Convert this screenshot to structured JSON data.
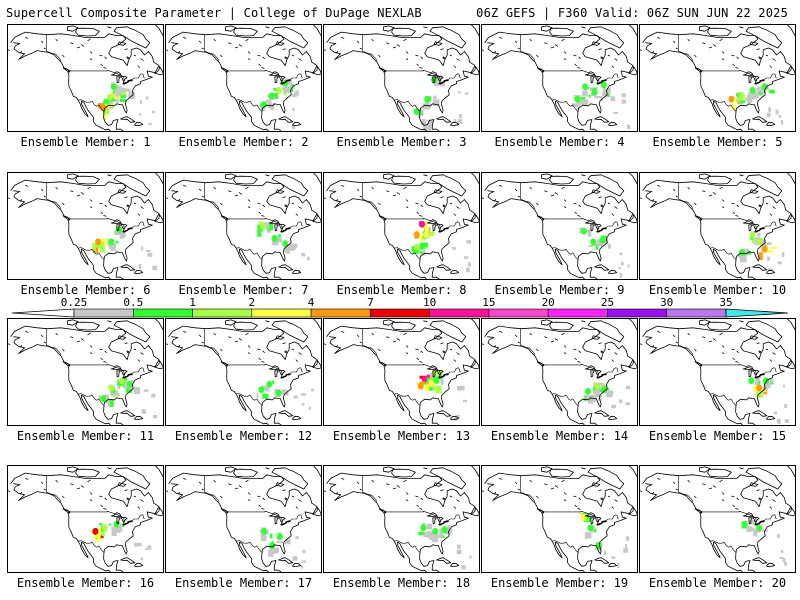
{
  "header": {
    "left_title": "Supercell Composite Parameter | College of DuPage NEXLAB",
    "right_title": "06Z GEFS | F360 Valid: 06Z SUN JUN 22 2025"
  },
  "colorbar": {
    "ticks": [
      "0.25",
      "0.5",
      "1",
      "2",
      "4",
      "7",
      "10",
      "15",
      "20",
      "25",
      "30",
      "35"
    ],
    "colors": [
      "#c8c8c8",
      "#33ff33",
      "#aaff44",
      "#ffff44",
      "#ff9911",
      "#ee0000",
      "#ff1199",
      "#ff44cc",
      "#ff22ff",
      "#9911ee",
      "#bb77ee",
      "#44e6e6"
    ]
  },
  "panels": [
    {
      "caption": "Ensemble Member: 1",
      "blobs": [
        {
          "lon": -96,
          "lat": 31,
          "v": 0.5
        },
        {
          "lon": -93,
          "lat": 34,
          "v": 1
        },
        {
          "lon": -88,
          "lat": 35,
          "v": 2
        },
        {
          "lon": -83,
          "lat": 37,
          "v": 1
        },
        {
          "lon": -98,
          "lat": 28,
          "v": 4
        },
        {
          "lon": -90,
          "lat": 40,
          "v": 0.5
        }
      ]
    },
    {
      "caption": "Ensemble Member: 2",
      "blobs": [
        {
          "lon": -90,
          "lat": 35,
          "v": 0.5
        },
        {
          "lon": -85,
          "lat": 38,
          "v": 1
        },
        {
          "lon": -80,
          "lat": 42,
          "v": 0.5
        },
        {
          "lon": -96,
          "lat": 30,
          "v": 0.5
        }
      ]
    },
    {
      "caption": "Ensemble Member: 3",
      "blobs": [
        {
          "lon": -100,
          "lat": 26,
          "v": 0.5
        },
        {
          "lon": -92,
          "lat": 33,
          "v": 0.5
        },
        {
          "lon": -87,
          "lat": 44,
          "v": 0.5
        },
        {
          "lon": -95,
          "lat": 20,
          "v": 0.25
        }
      ]
    },
    {
      "caption": "Ensemble Member: 4",
      "blobs": [
        {
          "lon": -92,
          "lat": 40,
          "v": 0.5
        },
        {
          "lon": -85,
          "lat": 37,
          "v": 0.5
        },
        {
          "lon": -78,
          "lat": 41,
          "v": 0.5
        },
        {
          "lon": -98,
          "lat": 33,
          "v": 0.5
        }
      ]
    },
    {
      "caption": "Ensemble Member: 5",
      "blobs": [
        {
          "lon": -101,
          "lat": 33,
          "v": 4
        },
        {
          "lon": -93,
          "lat": 35,
          "v": 1
        },
        {
          "lon": -85,
          "lat": 38,
          "v": 0.5
        },
        {
          "lon": -76,
          "lat": 40,
          "v": 0.5
        }
      ]
    },
    {
      "caption": "Ensemble Member: 6",
      "blobs": [
        {
          "lon": -102,
          "lat": 36,
          "v": 4
        },
        {
          "lon": -92,
          "lat": 36,
          "v": 0.5
        },
        {
          "lon": -86,
          "lat": 43,
          "v": 0.5
        }
      ]
    },
    {
      "caption": "Ensemble Member: 7",
      "blobs": [
        {
          "lon": -97,
          "lat": 45,
          "v": 1
        },
        {
          "lon": -88,
          "lat": 38,
          "v": 0.5
        },
        {
          "lon": -80,
          "lat": 35,
          "v": 0.5
        }
      ]
    },
    {
      "caption": "Ensemble Member: 8",
      "blobs": [
        {
          "lon": -96,
          "lat": 46,
          "v": 10
        },
        {
          "lon": -100,
          "lat": 40,
          "v": 4
        },
        {
          "lon": -93,
          "lat": 40,
          "v": 2
        },
        {
          "lon": -100,
          "lat": 33,
          "v": 1
        }
      ]
    },
    {
      "caption": "Ensemble Member: 9",
      "blobs": [
        {
          "lon": -93,
          "lat": 42,
          "v": 0.5
        },
        {
          "lon": -86,
          "lat": 36,
          "v": 0.5
        },
        {
          "lon": -79,
          "lat": 37,
          "v": 0.5
        }
      ]
    },
    {
      "caption": "Ensemble Member: 10",
      "blobs": [
        {
          "lon": -85,
          "lat": 40,
          "v": 1
        },
        {
          "lon": -80,
          "lat": 36,
          "v": 1
        },
        {
          "lon": -76,
          "lat": 32,
          "v": 4
        },
        {
          "lon": -93,
          "lat": 30,
          "v": 0.5
        }
      ]
    },
    {
      "caption": "Ensemble Member: 11",
      "blobs": [
        {
          "lon": -92,
          "lat": 36,
          "v": 1
        },
        {
          "lon": -84,
          "lat": 40,
          "v": 1
        },
        {
          "lon": -78,
          "lat": 38,
          "v": 0.5
        },
        {
          "lon": -98,
          "lat": 30,
          "v": 0.5
        }
      ]
    },
    {
      "caption": "Ensemble Member: 12",
      "blobs": [
        {
          "lon": -98,
          "lat": 35,
          "v": 0.5
        },
        {
          "lon": -92,
          "lat": 38,
          "v": 0.5
        },
        {
          "lon": -85,
          "lat": 33,
          "v": 0.5
        }
      ]
    },
    {
      "caption": "Ensemble Member: 13",
      "blobs": [
        {
          "lon": -94,
          "lat": 41,
          "v": 10
        },
        {
          "lon": -97,
          "lat": 37,
          "v": 4
        },
        {
          "lon": -89,
          "lat": 39,
          "v": 2
        },
        {
          "lon": -86,
          "lat": 44,
          "v": 1
        }
      ]
    },
    {
      "caption": "Ensemble Member: 14",
      "blobs": [
        {
          "lon": -83,
          "lat": 37,
          "v": 1
        },
        {
          "lon": -90,
          "lat": 34,
          "v": 0.5
        },
        {
          "lon": -78,
          "lat": 35,
          "v": 0.5
        }
      ]
    },
    {
      "caption": "Ensemble Member: 15",
      "blobs": [
        {
          "lon": -80,
          "lat": 36,
          "v": 4
        },
        {
          "lon": -86,
          "lat": 40,
          "v": 0.5
        },
        {
          "lon": -75,
          "lat": 40,
          "v": 0.5
        }
      ]
    },
    {
      "caption": "Ensemble Member: 16",
      "blobs": [
        {
          "lon": -104,
          "lat": 38,
          "v": 7
        },
        {
          "lon": -97,
          "lat": 40,
          "v": 1
        },
        {
          "lon": -88,
          "lat": 42,
          "v": 0.5
        }
      ]
    },
    {
      "caption": "Ensemble Member: 17",
      "blobs": [
        {
          "lon": -96,
          "lat": 38,
          "v": 0.5
        },
        {
          "lon": -84,
          "lat": 35,
          "v": 0.5
        },
        {
          "lon": -90,
          "lat": 30,
          "v": 0.5
        }
      ]
    },
    {
      "caption": "Ensemble Member: 18",
      "blobs": [
        {
          "lon": -95,
          "lat": 40,
          "v": 0.5
        },
        {
          "lon": -86,
          "lat": 38,
          "v": 0.5
        },
        {
          "lon": -79,
          "lat": 39,
          "v": 0.5
        }
      ]
    },
    {
      "caption": "Ensemble Member: 19",
      "blobs": [
        {
          "lon": -93,
          "lat": 46,
          "v": 2
        },
        {
          "lon": -88,
          "lat": 40,
          "v": 0.5
        },
        {
          "lon": -82,
          "lat": 30,
          "v": 0.5
        }
      ]
    },
    {
      "caption": "Ensemble Member: 20",
      "blobs": [
        {
          "lon": -91,
          "lat": 42,
          "v": 0.5
        },
        {
          "lon": -80,
          "lat": 40,
          "v": 0.5
        }
      ]
    }
  ]
}
